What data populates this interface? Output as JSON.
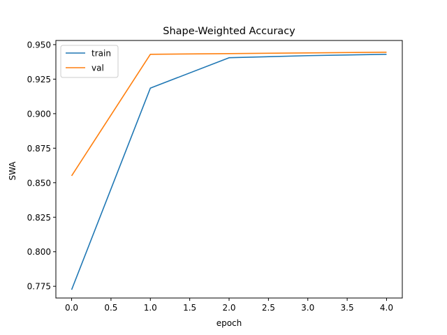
{
  "chart_data": {
    "type": "line",
    "title": "Shape-Weighted Accuracy",
    "xlabel": "epoch",
    "ylabel": "SWA",
    "xlim": [
      -0.2,
      4.2
    ],
    "ylim": [
      0.7665,
      0.953
    ],
    "xticks": [
      0.0,
      0.5,
      1.0,
      1.5,
      2.0,
      2.5,
      3.0,
      3.5,
      4.0
    ],
    "xtick_labels": [
      "0.0",
      "0.5",
      "1.0",
      "1.5",
      "2.0",
      "2.5",
      "3.0",
      "3.5",
      "4.0"
    ],
    "yticks": [
      0.775,
      0.8,
      0.825,
      0.85,
      0.875,
      0.9,
      0.925,
      0.95
    ],
    "ytick_labels": [
      "0.775",
      "0.800",
      "0.825",
      "0.850",
      "0.875",
      "0.900",
      "0.925",
      "0.950"
    ],
    "grid": false,
    "legend_position": "top-left",
    "x": [
      0,
      1,
      2,
      3,
      4
    ],
    "series": [
      {
        "name": "train",
        "color": "#1f77b4",
        "values": [
          0.7725,
          0.9185,
          0.9405,
          0.942,
          0.943
        ]
      },
      {
        "name": "val",
        "color": "#ff7f0e",
        "values": [
          0.855,
          0.943,
          0.9435,
          0.944,
          0.9445
        ]
      }
    ]
  }
}
